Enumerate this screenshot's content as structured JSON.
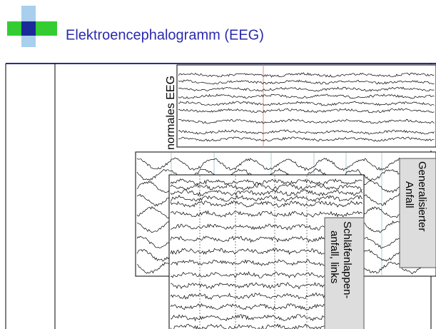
{
  "slide": {
    "title": "Elektroencephalogramm (EEG)",
    "panels": [
      {
        "label": "normales EEG"
      },
      {
        "label_lines": [
          "Generalisierter",
          "Anfall"
        ]
      },
      {
        "label_lines": [
          "Schläfenlappen-",
          "anfall, links"
        ]
      }
    ]
  }
}
